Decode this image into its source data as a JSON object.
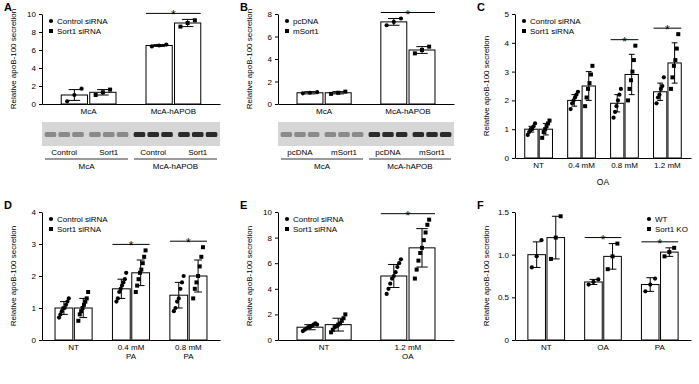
{
  "chart_data": [
    {
      "type": "bar",
      "panel": "A",
      "y_label": "Relative apoB-100 secretion",
      "categories": [
        "McA",
        "McA-hAPOB"
      ],
      "ylim": [
        0,
        10
      ],
      "yticks": [
        0,
        2,
        4,
        6,
        8,
        10
      ],
      "legend": "upper left",
      "significance": [
        null,
        "*"
      ],
      "blot_lanes": [
        "Control",
        "Sort1",
        "Control",
        "Sort1"
      ],
      "blot_groups": [
        "McA",
        "McA-hAPOB"
      ],
      "series": [
        {
          "name": "Control siRNA",
          "color": "#000000",
          "marker": "circle",
          "values": [
            1.0,
            6.5
          ],
          "errors": [
            0.6,
            0.1
          ],
          "points": [
            [
              0.3,
              1.0,
              1.7
            ],
            [
              6.4,
              6.5,
              6.6
            ]
          ]
        },
        {
          "name": "Sort1 siRNA",
          "color": "#000000",
          "marker": "square",
          "values": [
            1.3,
            9.0
          ],
          "errors": [
            0.3,
            0.4
          ],
          "points": [
            [
              1.0,
              1.3,
              1.6
            ],
            [
              8.6,
              9.0,
              9.3
            ]
          ]
        }
      ]
    },
    {
      "type": "bar",
      "panel": "B",
      "y_label": "Relative apoB-100 secretion",
      "categories": [
        "McA",
        "McA-hAPOB"
      ],
      "ylim": [
        0,
        8
      ],
      "yticks": [
        0,
        2,
        4,
        6,
        8
      ],
      "legend": "upper left",
      "significance": [
        null,
        "*"
      ],
      "blot_lanes": [
        "pcDNA",
        "mSort1",
        "pcDNA",
        "mSort1"
      ],
      "blot_groups": [
        "McA",
        "McA-hAPOB"
      ],
      "series": [
        {
          "name": "pcDNA",
          "color": "#000000",
          "marker": "circle",
          "values": [
            1.0,
            7.3
          ],
          "errors": [
            0.1,
            0.3
          ],
          "points": [
            [
              0.95,
              1.0,
              1.05
            ],
            [
              7.0,
              7.3,
              7.6
            ]
          ]
        },
        {
          "name": "mSort1",
          "color": "#000000",
          "marker": "square",
          "values": [
            1.0,
            4.8
          ],
          "errors": [
            0.1,
            0.3
          ],
          "points": [
            [
              0.9,
              1.0,
              1.1
            ],
            [
              4.5,
              4.8,
              5.1
            ]
          ]
        }
      ]
    },
    {
      "type": "bar",
      "panel": "C",
      "y_label": "Relative apoB-100 secretion",
      "x_label": "OA",
      "categories": [
        "NT",
        "0.4 mM",
        "0.8 mM",
        "1.2 mM"
      ],
      "ylim": [
        0,
        5
      ],
      "yticks": [
        0,
        1,
        2,
        3,
        4,
        5
      ],
      "legend": "upper left",
      "significance": [
        null,
        null,
        "*",
        "*"
      ],
      "series": [
        {
          "name": "Control siRNA",
          "color": "#000000",
          "marker": "circle",
          "values": [
            1.0,
            2.0,
            1.9,
            2.3
          ],
          "errors": [
            0.1,
            0.2,
            0.3,
            0.3
          ],
          "points": [
            [
              0.8,
              0.9,
              1.0,
              1.0,
              1.1,
              1.2
            ],
            [
              1.7,
              1.9,
              2.0,
              2.1,
              2.2,
              2.3
            ],
            [
              1.4,
              1.6,
              1.8,
              2.0,
              2.2,
              2.4
            ],
            [
              1.9,
              2.1,
              2.2,
              2.4,
              2.5,
              2.8
            ]
          ]
        },
        {
          "name": "Sort1 siRNA",
          "color": "#000000",
          "marker": "square",
          "values": [
            1.0,
            2.5,
            2.9,
            3.3
          ],
          "errors": [
            0.2,
            0.5,
            0.7,
            0.7
          ],
          "points": [
            [
              0.7,
              0.9,
              1.0,
              1.1,
              1.2,
              1.3
            ],
            [
              1.8,
              2.1,
              2.4,
              2.6,
              2.9,
              3.2
            ],
            [
              2.0,
              2.4,
              2.7,
              3.0,
              3.4,
              3.9
            ],
            [
              2.4,
              2.8,
              3.2,
              3.4,
              3.8,
              4.3
            ]
          ]
        }
      ]
    },
    {
      "type": "bar",
      "panel": "D",
      "y_label": "Relative apoB-100 secretion",
      "categories": [
        "NT",
        "0.4 mM PA",
        "0.8 mM PA"
      ],
      "ylim": [
        0,
        4
      ],
      "yticks": [
        0,
        1,
        2,
        3,
        4
      ],
      "legend": "upper left",
      "significance": [
        null,
        "*",
        "*"
      ],
      "series": [
        {
          "name": "Control siRNA",
          "color": "#000000",
          "marker": "circle",
          "values": [
            1.0,
            1.6,
            1.4
          ],
          "errors": [
            0.2,
            0.3,
            0.4
          ],
          "points": [
            [
              0.7,
              0.8,
              0.9,
              1.0,
              1.0,
              1.1,
              1.2,
              1.3
            ],
            [
              1.2,
              1.3,
              1.5,
              1.6,
              1.7,
              1.8,
              1.9,
              2.1
            ],
            [
              0.9,
              1.0,
              1.2,
              1.3,
              1.6,
              1.8,
              2.0
            ]
          ]
        },
        {
          "name": "Sort1 siRNA",
          "color": "#000000",
          "marker": "square",
          "values": [
            1.0,
            2.1,
            2.0
          ],
          "errors": [
            0.3,
            0.4,
            0.5
          ],
          "points": [
            [
              0.6,
              0.8,
              0.9,
              1.0,
              1.1,
              1.2,
              1.3,
              1.5
            ],
            [
              1.5,
              1.7,
              1.9,
              2.1,
              2.2,
              2.4,
              2.6,
              2.8
            ],
            [
              1.3,
              1.6,
              1.8,
              2.0,
              2.3,
              2.6,
              2.9
            ]
          ]
        }
      ]
    },
    {
      "type": "bar",
      "panel": "E",
      "y_label": "Relative apoB-100 secretion",
      "categories": [
        "NT",
        "1.2 mM OA"
      ],
      "ylim": [
        0,
        10
      ],
      "yticks": [
        0,
        2,
        4,
        6,
        8,
        10
      ],
      "legend": "upper left",
      "significance": [
        null,
        "*"
      ],
      "series": [
        {
          "name": "Control siRNA",
          "color": "#000000",
          "marker": "circle",
          "values": [
            1.0,
            5.0
          ],
          "errors": [
            0.2,
            0.9
          ],
          "points": [
            [
              0.7,
              0.8,
              0.9,
              1.0,
              1.0,
              1.1,
              1.2,
              1.3,
              1.2
            ],
            [
              3.6,
              4.0,
              4.4,
              4.8,
              5.0,
              5.3,
              5.7,
              6.0,
              6.3
            ]
          ]
        },
        {
          "name": "Sort1 siRNA",
          "color": "#000000",
          "marker": "square",
          "values": [
            1.2,
            7.2
          ],
          "errors": [
            0.5,
            1.5
          ],
          "points": [
            [
              0.6,
              0.8,
              1.0,
              1.1,
              1.2,
              1.3,
              1.5,
              1.7,
              2.0
            ],
            [
              4.8,
              5.5,
              6.2,
              6.8,
              7.2,
              7.8,
              8.4,
              9.0,
              9.4
            ]
          ]
        }
      ]
    },
    {
      "type": "bar",
      "panel": "F",
      "y_label": "Relative apoB-100 secretion",
      "categories": [
        "NT",
        "OA",
        "PA"
      ],
      "ylim": [
        0,
        1.5
      ],
      "yticks": [
        0,
        0.5,
        {
          "value": 1,
          "label": "1.0"
        },
        1.5
      ],
      "legend": "upper right",
      "significance": [
        null,
        "*",
        "*"
      ],
      "series": [
        {
          "name": "WT",
          "color": "#000000",
          "marker": "circle",
          "values": [
            1.0,
            0.68,
            0.65
          ],
          "errors": [
            0.15,
            0.03,
            0.08
          ],
          "points": [
            [
              0.85,
              0.98,
              1.17
            ],
            [
              0.65,
              0.68,
              0.71
            ],
            [
              0.57,
              0.65,
              0.72
            ]
          ]
        },
        {
          "name": "Sort1 KO",
          "color": "#000000",
          "marker": "square",
          "values": [
            1.2,
            0.98,
            1.03
          ],
          "errors": [
            0.25,
            0.15,
            0.05
          ],
          "points": [
            [
              0.95,
              1.2,
              1.45
            ],
            [
              0.83,
              0.98,
              1.13
            ],
            [
              0.98,
              1.03,
              1.08
            ]
          ]
        }
      ]
    }
  ]
}
